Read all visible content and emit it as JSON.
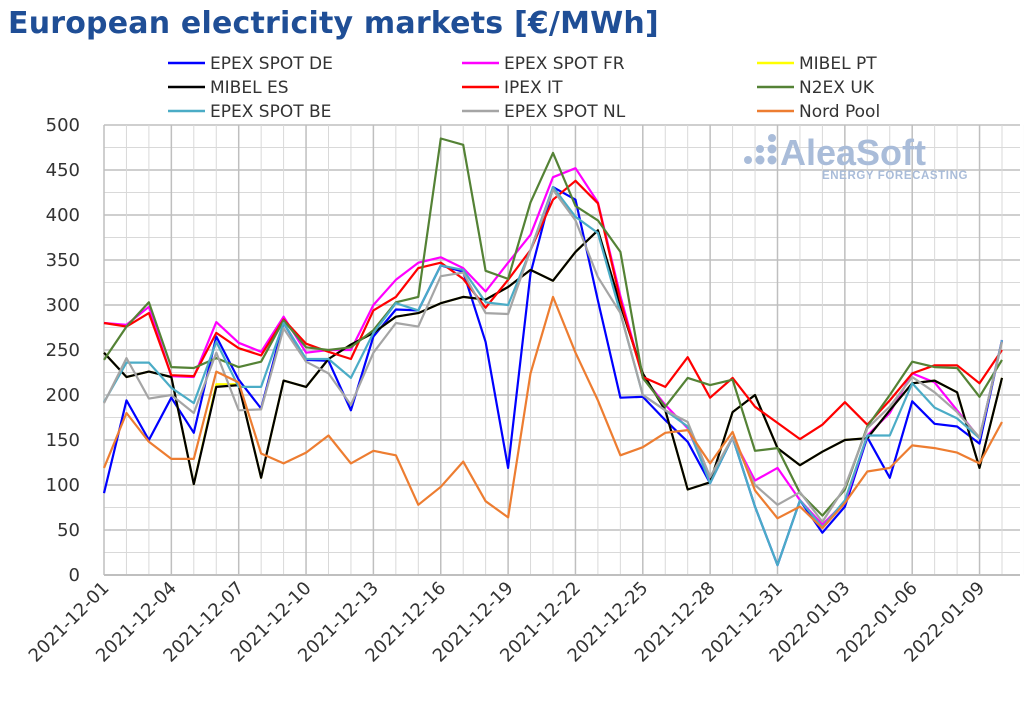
{
  "title": "European electricity markets [€/MWh]",
  "logo": {
    "main": "AleaSoft",
    "sub": "ENERGY FORECASTING"
  },
  "chart_data": {
    "type": "line",
    "title": "European electricity markets [€/MWh]",
    "xlabel": "",
    "ylabel": "",
    "ylim": [
      0,
      500
    ],
    "y_ticks": [
      "0",
      "50",
      "100",
      "150",
      "200",
      "250",
      "300",
      "350",
      "400",
      "450",
      "500"
    ],
    "grid": true,
    "legend_position": "top",
    "x": [
      "2021-12-01",
      "2021-12-02",
      "2021-12-03",
      "2021-12-04",
      "2021-12-05",
      "2021-12-06",
      "2021-12-07",
      "2021-12-08",
      "2021-12-09",
      "2021-12-10",
      "2021-12-11",
      "2021-12-12",
      "2021-12-13",
      "2021-12-14",
      "2021-12-15",
      "2021-12-16",
      "2021-12-17",
      "2021-12-18",
      "2021-12-19",
      "2021-12-20",
      "2021-12-21",
      "2021-12-22",
      "2021-12-23",
      "2021-12-24",
      "2021-12-25",
      "2021-12-26",
      "2021-12-27",
      "2021-12-28",
      "2021-12-29",
      "2021-12-30",
      "2021-12-31",
      "2022-01-01",
      "2022-01-02",
      "2022-01-03",
      "2022-01-04",
      "2022-01-05",
      "2022-01-06",
      "2022-01-07",
      "2022-01-08",
      "2022-01-09",
      "2022-01-10"
    ],
    "x_ticks": [
      "2021-12-01",
      "2021-12-04",
      "2021-12-07",
      "2021-12-10",
      "2021-12-13",
      "2021-12-16",
      "2021-12-19",
      "2021-12-22",
      "2021-12-25",
      "2021-12-28",
      "2021-12-31",
      "2022-01-03",
      "2022-01-06",
      "2022-01-09"
    ],
    "series": [
      {
        "name": "EPEX SPOT DE",
        "color": "#0000ff",
        "values": [
          91,
          194,
          150,
          197,
          158,
          265,
          217,
          185,
          280,
          239,
          238,
          183,
          265,
          295,
          294,
          344,
          337,
          259,
          119,
          335,
          431,
          417,
          305,
          197,
          198,
          172,
          148,
          102,
          153,
          76,
          11,
          83,
          47,
          76,
          153,
          108,
          193,
          168,
          165,
          146,
          261
        ]
      },
      {
        "name": "EPEX SPOT FR",
        "color": "#ff00ff",
        "values": [
          280,
          278,
          298,
          221,
          220,
          281,
          258,
          248,
          287,
          247,
          250,
          250,
          300,
          328,
          347,
          353,
          341,
          315,
          347,
          378,
          442,
          452,
          414,
          310,
          220,
          189,
          163,
          105,
          153,
          105,
          119,
          83,
          56,
          81,
          155,
          180,
          224,
          214,
          183,
          152,
          261
        ]
      },
      {
        "name": "MIBEL PT",
        "color": "#ffff00",
        "values": [
          247,
          220,
          226,
          220,
          101,
          212,
          212,
          108,
          216,
          209,
          240,
          256,
          269,
          287,
          291,
          302,
          309,
          306,
          320,
          339,
          327,
          359,
          383,
          300,
          224,
          183,
          95,
          103,
          181,
          200,
          141,
          122,
          137,
          150,
          152,
          183,
          213,
          216,
          203,
          119,
          219
        ]
      },
      {
        "name": "MIBEL ES",
        "color": "#000000",
        "values": [
          247,
          220,
          226,
          220,
          101,
          209,
          211,
          108,
          216,
          209,
          240,
          256,
          269,
          287,
          291,
          302,
          309,
          306,
          320,
          339,
          327,
          359,
          383,
          300,
          224,
          183,
          95,
          103,
          181,
          200,
          141,
          122,
          137,
          150,
          152,
          183,
          213,
          216,
          203,
          119,
          219
        ]
      },
      {
        "name": "IPEX IT",
        "color": "#ff0000",
        "values": [
          280,
          276,
          291,
          222,
          221,
          269,
          252,
          244,
          284,
          257,
          248,
          240,
          294,
          309,
          341,
          347,
          329,
          297,
          328,
          361,
          417,
          438,
          413,
          305,
          220,
          209,
          242,
          197,
          219,
          187,
          169,
          151,
          167,
          192,
          167,
          194,
          224,
          233,
          233,
          213,
          250
        ]
      },
      {
        "name": "N2EX UK",
        "color": "#548235",
        "values": [
          239,
          276,
          303,
          231,
          230,
          241,
          231,
          237,
          283,
          253,
          250,
          253,
          272,
          303,
          309,
          485,
          478,
          338,
          329,
          414,
          469,
          410,
          394,
          359,
          219,
          187,
          219,
          211,
          217,
          138,
          141,
          91,
          66,
          95,
          165,
          200,
          237,
          231,
          230,
          198,
          239
        ]
      },
      {
        "name": "EPEX SPOT BE",
        "color": "#4bacc6",
        "values": [
          192,
          236,
          236,
          208,
          191,
          259,
          209,
          209,
          280,
          240,
          240,
          219,
          269,
          302,
          294,
          344,
          339,
          303,
          300,
          361,
          431,
          398,
          380,
          291,
          200,
          183,
          165,
          102,
          153,
          76,
          11,
          83,
          53,
          83,
          155,
          155,
          213,
          186,
          174,
          152,
          261
        ]
      },
      {
        "name": "EPEX SPOT NL",
        "color": "#a5a5a5",
        "values": [
          191,
          241,
          196,
          200,
          180,
          247,
          183,
          184,
          274,
          237,
          224,
          189,
          247,
          280,
          276,
          332,
          336,
          291,
          290,
          361,
          428,
          394,
          331,
          291,
          200,
          183,
          170,
          109,
          153,
          100,
          78,
          92,
          59,
          98,
          163,
          187,
          220,
          203,
          181,
          153,
          259
        ]
      },
      {
        "name": "Nord Pool",
        "color": "#ed7d31",
        "values": [
          119,
          180,
          148,
          129,
          129,
          226,
          214,
          135,
          124,
          136,
          155,
          124,
          138,
          133,
          78,
          98,
          126,
          82,
          64,
          224,
          309,
          247,
          194,
          133,
          142,
          158,
          161,
          124,
          159,
          94,
          63,
          76,
          52,
          80,
          115,
          119,
          144,
          141,
          136,
          124,
          170
        ]
      }
    ]
  }
}
